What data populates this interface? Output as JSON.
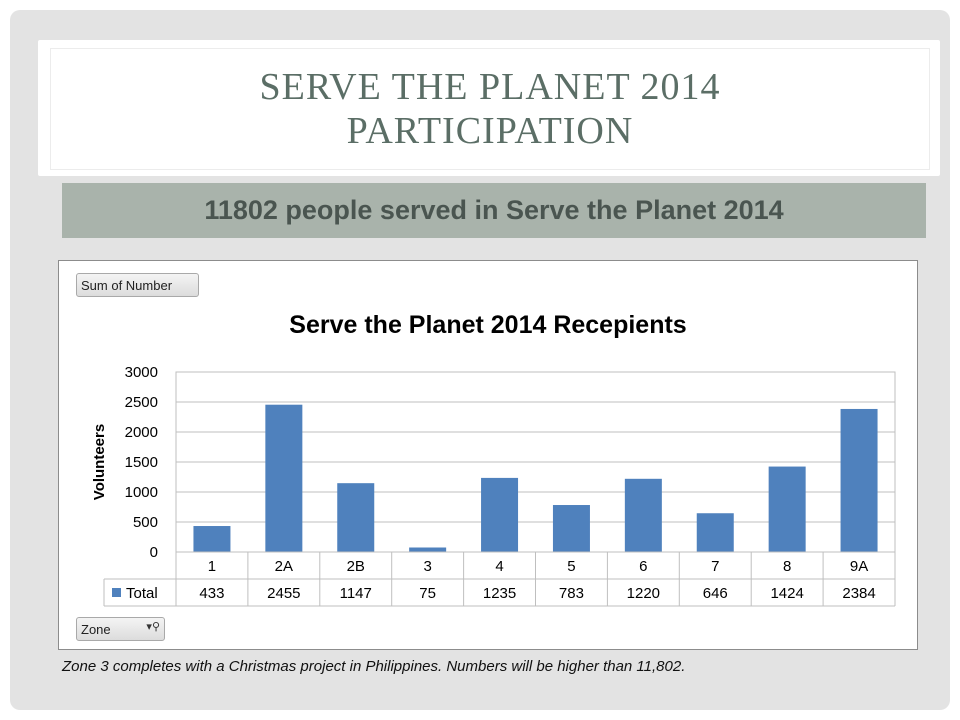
{
  "slide": {
    "title_line1": "SERVE THE PLANET 2014",
    "title_line2": "PARTICIPATION",
    "banner": "11802 people served in Serve the Planet 2014",
    "caption": "Zone 3 completes with  a Christmas  project in Philippines. Numbers will be higher than 11,802."
  },
  "pivot": {
    "sum_button": "Sum of Number",
    "zone_button": "Zone"
  },
  "colors": {
    "bar": "#4f81bd",
    "banner_bg": "#a9b3ab",
    "title_text": "#5b6e66"
  },
  "chart_data": {
    "type": "bar",
    "title": "Serve the Planet 2014 Recepients",
    "xlabel": "",
    "ylabel": "Volunteers",
    "categories": [
      "1",
      "2A",
      "2B",
      "3",
      "4",
      "5",
      "6",
      "7",
      "8",
      "9A"
    ],
    "series": [
      {
        "name": "Total",
        "values": [
          433,
          2455,
          1147,
          75,
          1235,
          783,
          1220,
          646,
          1424,
          2384
        ]
      }
    ],
    "ylim": [
      0,
      3000
    ],
    "yticks": [
      0,
      500,
      1000,
      1500,
      2000,
      2500,
      3000
    ],
    "grid": true,
    "legend": "data-table"
  }
}
